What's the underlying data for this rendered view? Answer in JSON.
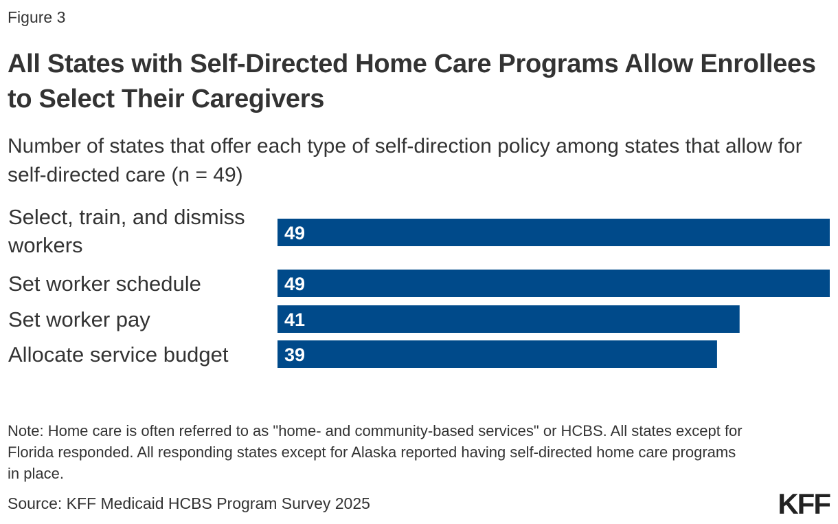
{
  "figure_label": "Figure 3",
  "title": "All States with Self-Directed Home Care Programs Allow Enrollees to Select Their Caregivers",
  "subtitle": "Number of states that offer each type of self-direction policy among states that allow for self-directed care (n = 49)",
  "note": "Note: Home care is often referred to as \"home- and community-based services\" or HCBS. All states except for Florida responded. All responding states except for Alaska reported having self-directed home care programs in place.",
  "source": "Source: KFF Medicaid HCBS Program Survey 2025",
  "logo": "KFF",
  "colors": {
    "bar": "#004a8a",
    "bar_label": "#ffffff",
    "text": "#333333"
  },
  "chart_data": {
    "type": "bar",
    "orientation": "horizontal",
    "title": "All States with Self-Directed Home Care Programs Allow Enrollees to Select Their Caregivers",
    "subtitle": "Number of states that offer each type of self-direction policy among states that allow for self-directed care (n = 49)",
    "categories": [
      [
        "Select, train, and dismiss",
        "workers"
      ],
      [
        "Set worker schedule"
      ],
      [
        "Set worker pay"
      ],
      [
        "Allocate service budget"
      ]
    ],
    "values": [
      49,
      49,
      41,
      39
    ],
    "xlim": [
      0,
      49
    ],
    "grid": false,
    "legend": "none",
    "data_labels": "inside-left"
  }
}
